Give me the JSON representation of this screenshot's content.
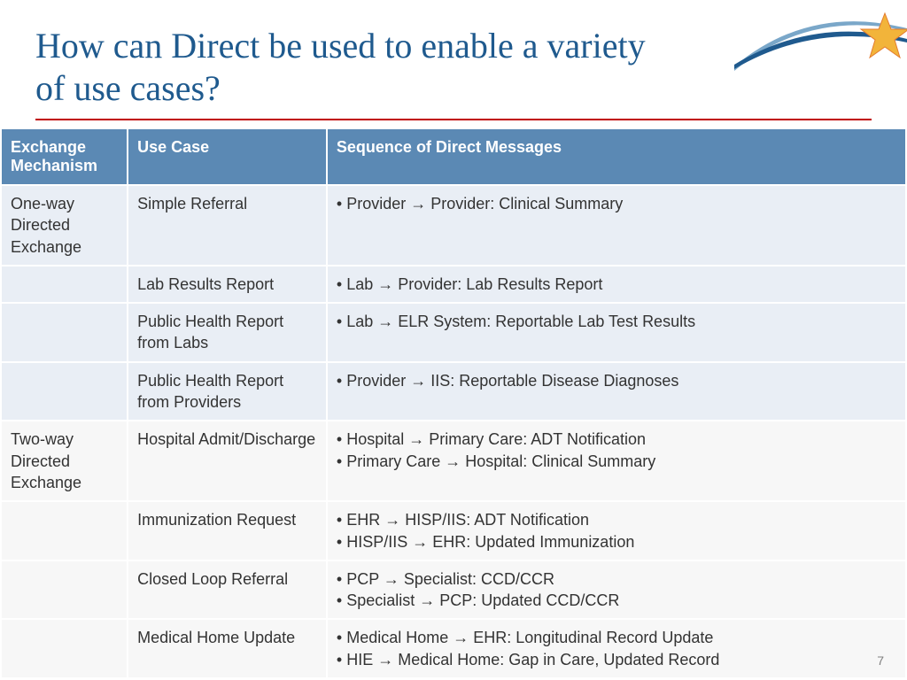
{
  "title": "How can Direct be used to enable a variety of use cases?",
  "title_color": "#1f5a8e",
  "underline_color": "#c00000",
  "table": {
    "header_bg": "#5b89b4",
    "header_color": "#ffffff",
    "shade_a": "#e9eef5",
    "shade_b": "#f7f7f7",
    "columns": [
      "Exchange Mechanism",
      "Use Case",
      "Sequence of Direct Messages"
    ],
    "rows": [
      {
        "mechanism": "One-way Directed Exchange",
        "usecase": "Simple Referral",
        "messages": [
          "Provider → Provider: Clinical Summary"
        ],
        "shade": "a"
      },
      {
        "mechanism": "",
        "usecase": "Lab Results Report",
        "messages": [
          "Lab → Provider: Lab Results Report"
        ],
        "shade": "a"
      },
      {
        "mechanism": "",
        "usecase": "Public Health Report from Labs",
        "messages": [
          "Lab → ELR System:  Reportable Lab Test Results"
        ],
        "shade": "a"
      },
      {
        "mechanism": "",
        "usecase": "Public Health Report from Providers",
        "messages": [
          "Provider → IIS: Reportable Disease Diagnoses"
        ],
        "shade": "a"
      },
      {
        "mechanism": "Two-way Directed Exchange",
        "usecase": "Hospital Admit/Discharge",
        "messages": [
          "Hospital → Primary Care:  ADT Notification",
          "Primary Care → Hospital: Clinical Summary"
        ],
        "shade": "b"
      },
      {
        "mechanism": "",
        "usecase": "Immunization Request",
        "messages": [
          "EHR → HISP/IIS:  ADT Notification",
          "HISP/IIS → EHR: Updated Immunization"
        ],
        "shade": "b"
      },
      {
        "mechanism": "",
        "usecase": "Closed Loop Referral",
        "messages": [
          "PCP → Specialist: CCD/CCR",
          "Specialist → PCP: Updated CCD/CCR"
        ],
        "shade": "b"
      },
      {
        "mechanism": "",
        "usecase": "Medical Home Update",
        "messages": [
          "Medical Home → EHR:  Longitudinal Record Update",
          "HIE → Medical Home: Gap in Care, Updated Record"
        ],
        "shade": "b"
      }
    ]
  },
  "page_number": "7",
  "logo": {
    "swoosh_dark": "#1f5a8e",
    "swoosh_light": "#7aa7c9",
    "star_yellow": "#f2b43a",
    "star_orange": "#e47b2e"
  }
}
